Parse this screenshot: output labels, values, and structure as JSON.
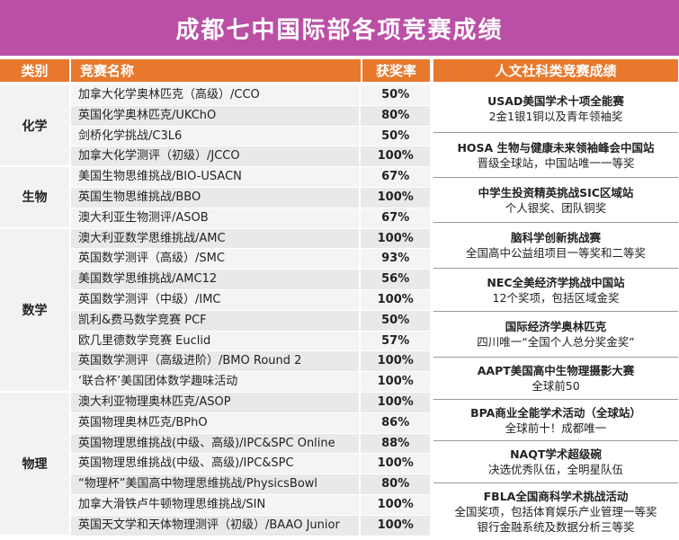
{
  "title": "成都七中国际部各项竞赛成绩",
  "headers": {
    "category": "类别",
    "competition": "竞赛名称",
    "rate": "获奖率",
    "humanities": "人文社科类竞赛成绩"
  },
  "categories": [
    {
      "name": "化学",
      "rows": [
        {
          "name": "加拿大化学奥林匹克（高级）/CCO",
          "rate": "50%"
        },
        {
          "name": "英国化学奥林匹克/UKChO",
          "rate": "80%"
        },
        {
          "name": "剑桥化学挑战/C3L6",
          "rate": "50%"
        },
        {
          "name": "加拿大化学测评（初级）/JCCO",
          "rate": "100%"
        }
      ]
    },
    {
      "name": "生物",
      "rows": [
        {
          "name": "美国生物思维挑战/BIO-USACN",
          "rate": "67%"
        },
        {
          "name": "英国生物思维挑战/BBO",
          "rate": "100%"
        },
        {
          "name": "澳大利亚生物测评/ASOB",
          "rate": "67%"
        }
      ]
    },
    {
      "name": "数学",
      "rows": [
        {
          "name": "澳大利亚数学思维挑战/AMC",
          "rate": "100%"
        },
        {
          "name": "英国数学测评（高级）/SMC",
          "rate": "93%"
        },
        {
          "name": "美国数学思维挑战/AMC12",
          "rate": "56%"
        },
        {
          "name": "英国数学测评（中级）/IMC",
          "rate": "100%"
        },
        {
          "name": "凯利&费马数学竞赛 PCF",
          "rate": "50%"
        },
        {
          "name": "欧几里德数学竞赛 Euclid",
          "rate": "57%"
        },
        {
          "name": "英国数学测评（高级进阶）/BMO Round 2",
          "rate": "100%"
        },
        {
          "name": "‘联合杯’美国团体数学趣味活动",
          "rate": "100%"
        }
      ]
    },
    {
      "name": "物理",
      "rows": [
        {
          "name": "澳大利亚物理奥林匹克/ASOP",
          "rate": "100%"
        },
        {
          "name": "英国物理奥林匹克/BPhO",
          "rate": "86%"
        },
        {
          "name": "英国物理思维挑战(中级、高级)/IPC&SPC Online",
          "rate": "88%"
        },
        {
          "name": "英国物理思维挑战(中级、高级)/IPC&SPC",
          "rate": "100%"
        },
        {
          "name": "“物理杯”美国高中物理思维挑战/PhysicsBowl",
          "rate": "80%"
        },
        {
          "name": "加拿大滑铁卢牛顿物理思维挑战/SIN",
          "rate": "100%"
        },
        {
          "name": "英国天文学和天体物理测评（初级）/BAAO Junior",
          "rate": "100%"
        }
      ]
    }
  ],
  "humanities": [
    {
      "title": "USAD美国学术十项全能赛",
      "lines": [
        "2金1银1铜以及青年领袖奖"
      ]
    },
    {
      "title": "HOSA 生物与健康未来领袖峰会中国站",
      "lines": [
        "晋级全球站，中国站唯一一等奖"
      ]
    },
    {
      "title": "中学生投资精英挑战SIC区域站",
      "lines": [
        "个人银奖、团队铜奖"
      ]
    },
    {
      "title": "脑科学创新挑战赛",
      "lines": [
        "全国高中公益组项目一等奖和二等奖"
      ]
    },
    {
      "title": "NEC全美经济学挑战中国站",
      "lines": [
        "12个奖项，包括区域金奖"
      ]
    },
    {
      "title": "国际经济学奥林匹克",
      "lines": [
        "四川唯一“全国个人总分奖金奖”"
      ]
    },
    {
      "title": "AAPT美国高中生物理摄影大赛",
      "lines": [
        "全球前50"
      ]
    },
    {
      "title": "BPA商业全能学术活动（全球站）",
      "lines": [
        "全球前十！成都唯一"
      ]
    },
    {
      "title": "NAQT学术超级碗",
      "lines": [
        "决选优秀队伍，全明星队伍"
      ]
    },
    {
      "title": "FBLA全国商科学术挑战活动",
      "lines": [
        "全国奖项，包括体育娱乐产业管理一等奖",
        "银行金融系统及数据分析三等奖"
      ]
    }
  ]
}
